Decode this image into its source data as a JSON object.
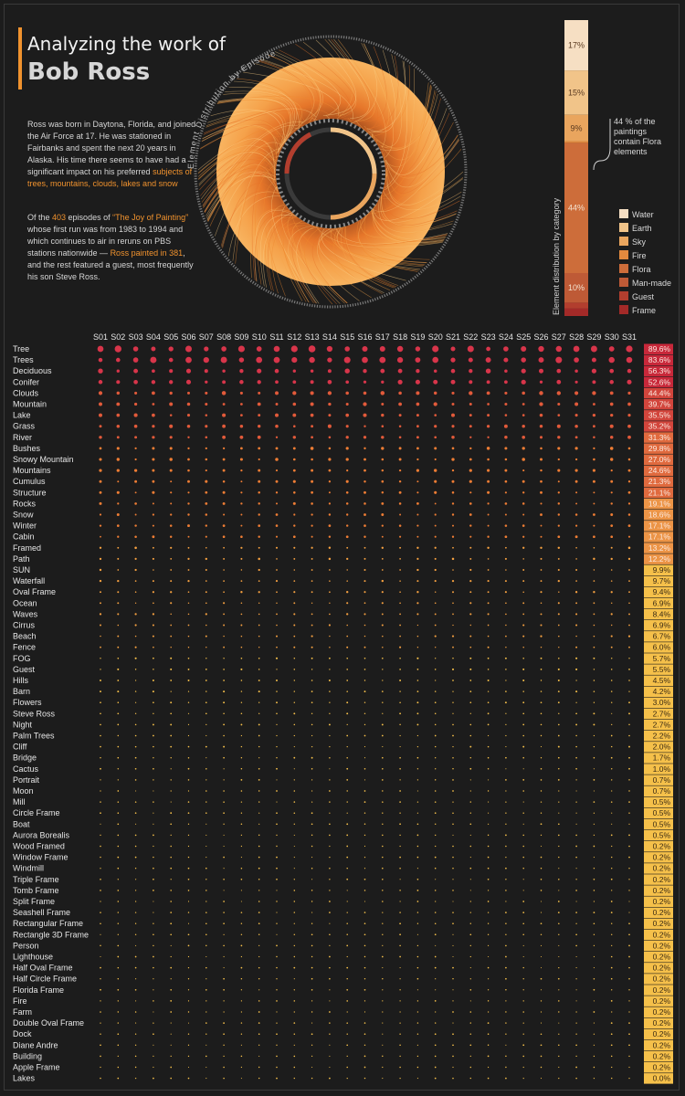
{
  "header": {
    "title_line1": "Analyzing the work of",
    "title_line2": "Bob Ross"
  },
  "intro": {
    "p1_a": "Ross was born in Daytona, Florida, and joined the Air Force at 17. He was stationed in Fairbanks and spent the next 20 years in Alaska. His time there seems to have had a significant impact on his preferred ",
    "p1_hl": "subjects of trees, mountains, clouds, lakes and snow",
    "p2_a": "Of the ",
    "p2_num": "403",
    "p2_b": " episodes of ",
    "p2_show": "“The Joy of Painting”",
    "p2_c": " whose first run was from 1983 to 1994 and which continues to air in reruns on PBS stations nationwide — ",
    "p2_hl": "Ross painted in 381",
    "p2_d": ", and the rest featured a guest, most frequently his son Steve Ross."
  },
  "circle": {
    "label": "Element Distribution by Episode"
  },
  "colors": {
    "bg": "#1c1c1c",
    "accent": "#f0922e",
    "high": "#c8283a",
    "low": "#f5c04a"
  },
  "chart_data": [
    {
      "type": "bar",
      "title": "",
      "ylabel": "Element distribution by category",
      "categories": [
        "Water",
        "Earth",
        "Sky",
        "Fire",
        "Flora",
        "Man-made",
        "Guest",
        "Frame"
      ],
      "values": [
        17,
        15,
        9,
        0.5,
        44,
        10,
        2,
        2.5
      ],
      "value_labels": [
        "17%",
        "15%",
        "9%",
        "",
        "44%",
        "10%",
        "",
        ""
      ],
      "colors": [
        "#f6dfc3",
        "#f1c489",
        "#e9a55e",
        "#e2893e",
        "#cd6d3a",
        "#be5a36",
        "#b23e2e",
        "#a32a28"
      ],
      "annotation": "44 % of the paintings contain Flora elements",
      "legend_position": "right"
    },
    {
      "type": "heatmap",
      "title": "",
      "x": [
        "S01",
        "S02",
        "S03",
        "S04",
        "S05",
        "S06",
        "S07",
        "S08",
        "S09",
        "S10",
        "S11",
        "S12",
        "S13",
        "S14",
        "S15",
        "S16",
        "S17",
        "S18",
        "S19",
        "S20",
        "S21",
        "S22",
        "S23",
        "S24",
        "S25",
        "S26",
        "S27",
        "S28",
        "S29",
        "S30",
        "S31"
      ],
      "rows": [
        {
          "name": "Tree",
          "pct": "89.6%"
        },
        {
          "name": "Trees",
          "pct": "83.6%"
        },
        {
          "name": "Deciduous",
          "pct": "56.3%"
        },
        {
          "name": "Conifer",
          "pct": "52.6%"
        },
        {
          "name": "Clouds",
          "pct": "44.4%"
        },
        {
          "name": "Mountain",
          "pct": "39.7%"
        },
        {
          "name": "Lake",
          "pct": "35.5%"
        },
        {
          "name": "Grass",
          "pct": "35.2%"
        },
        {
          "name": "River",
          "pct": "31.3%"
        },
        {
          "name": "Bushes",
          "pct": "29.8%"
        },
        {
          "name": "Snowy Mountain",
          "pct": "27.0%"
        },
        {
          "name": "Mountains",
          "pct": "24.6%"
        },
        {
          "name": "Cumulus",
          "pct": "21.3%"
        },
        {
          "name": "Structure",
          "pct": "21.1%"
        },
        {
          "name": "Rocks",
          "pct": "19.1%"
        },
        {
          "name": "Snow",
          "pct": "18.6%"
        },
        {
          "name": "Winter",
          "pct": "17.1%"
        },
        {
          "name": "Cabin",
          "pct": "17.1%"
        },
        {
          "name": "Framed",
          "pct": "13.2%"
        },
        {
          "name": "Path",
          "pct": "12.2%"
        },
        {
          "name": "SUN",
          "pct": "9.9%"
        },
        {
          "name": "Waterfall",
          "pct": "9.7%"
        },
        {
          "name": "Oval Frame",
          "pct": "9.4%"
        },
        {
          "name": "Ocean",
          "pct": "6.9%"
        },
        {
          "name": "Waves",
          "pct": "8.4%"
        },
        {
          "name": "Cirrus",
          "pct": "6.9%"
        },
        {
          "name": "Beach",
          "pct": "6.7%"
        },
        {
          "name": "Fence",
          "pct": "6.0%"
        },
        {
          "name": "FOG",
          "pct": "5.7%"
        },
        {
          "name": "Guest",
          "pct": "5.5%"
        },
        {
          "name": "Hills",
          "pct": "4.5%"
        },
        {
          "name": "Barn",
          "pct": "4.2%"
        },
        {
          "name": "Flowers",
          "pct": "3.0%"
        },
        {
          "name": "Steve Ross",
          "pct": "2.7%"
        },
        {
          "name": "Night",
          "pct": "2.7%"
        },
        {
          "name": "Palm Trees",
          "pct": "2.2%"
        },
        {
          "name": "Cliff",
          "pct": "2.0%"
        },
        {
          "name": "Bridge",
          "pct": "1.7%"
        },
        {
          "name": "Cactus",
          "pct": "1.0%"
        },
        {
          "name": "Portrait",
          "pct": "0.7%"
        },
        {
          "name": "Moon",
          "pct": "0.7%"
        },
        {
          "name": "Mill",
          "pct": "0.5%"
        },
        {
          "name": "Circle Frame",
          "pct": "0.5%"
        },
        {
          "name": "Boat",
          "pct": "0.5%"
        },
        {
          "name": "Aurora Borealis",
          "pct": "0.5%"
        },
        {
          "name": "Wood Framed",
          "pct": "0.2%"
        },
        {
          "name": "Window Frame",
          "pct": "0.2%"
        },
        {
          "name": "Windmill",
          "pct": "0.2%"
        },
        {
          "name": "Triple Frame",
          "pct": "0.2%"
        },
        {
          "name": "Tomb Frame",
          "pct": "0.2%"
        },
        {
          "name": "Split Frame",
          "pct": "0.2%"
        },
        {
          "name": "Seashell Frame",
          "pct": "0.2%"
        },
        {
          "name": "Rectangular Frame",
          "pct": "0.2%"
        },
        {
          "name": "Rectangle 3D Frame",
          "pct": "0.2%"
        },
        {
          "name": "Person",
          "pct": "0.2%"
        },
        {
          "name": "Lighthouse",
          "pct": "0.2%"
        },
        {
          "name": "Half Oval Frame",
          "pct": "0.2%"
        },
        {
          "name": "Half Circle Frame",
          "pct": "0.2%"
        },
        {
          "name": "Florida Frame",
          "pct": "0.2%"
        },
        {
          "name": "Fire",
          "pct": "0.2%"
        },
        {
          "name": "Farm",
          "pct": "0.2%"
        },
        {
          "name": "Double Oval Frame",
          "pct": "0.2%"
        },
        {
          "name": "Dock",
          "pct": "0.2%"
        },
        {
          "name": "Diane Andre",
          "pct": "0.2%"
        },
        {
          "name": "Building",
          "pct": "0.2%"
        },
        {
          "name": "Apple Frame",
          "pct": "0.2%"
        },
        {
          "name": "Lakes",
          "pct": "0.0%"
        }
      ]
    }
  ]
}
